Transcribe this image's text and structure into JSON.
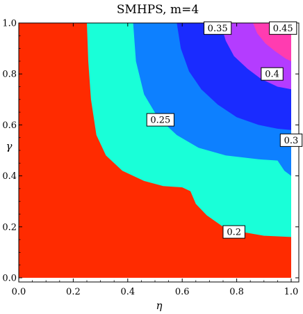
{
  "chart_data": {
    "type": "contour",
    "title": "SMHPS, m=4",
    "xlabel": "η",
    "ylabel": "γ",
    "xlim": [
      0.0,
      1.0
    ],
    "ylim": [
      0.0,
      1.0
    ],
    "x_ticks": [
      "0.0",
      "0.2",
      "0.4",
      "0.6",
      "0.8",
      "1.0"
    ],
    "y_ticks": [
      "0.0",
      "0.2",
      "0.4",
      "0.6",
      "0.8",
      "1.0"
    ],
    "grid": false,
    "levels": [
      0.2,
      0.25,
      0.3,
      0.35,
      0.4,
      0.45
    ],
    "level_labels": [
      {
        "text": "0.2",
        "x": 0.79,
        "y": 0.18
      },
      {
        "text": "0.25",
        "x": 0.52,
        "y": 0.62
      },
      {
        "text": "0.3",
        "x": 1.0,
        "y": 0.54
      },
      {
        "text": "0.35",
        "x": 0.73,
        "y": 0.98
      },
      {
        "text": "0.4",
        "x": 0.93,
        "y": 0.8
      },
      {
        "text": "0.45",
        "x": 0.97,
        "y": 0.98
      }
    ],
    "band_colors": [
      "#ff2b00",
      "#19ffd8",
      "#0d80ff",
      "#1a2bff",
      "#b43cff",
      "#ff3cb0",
      "#ff1a2a"
    ]
  }
}
